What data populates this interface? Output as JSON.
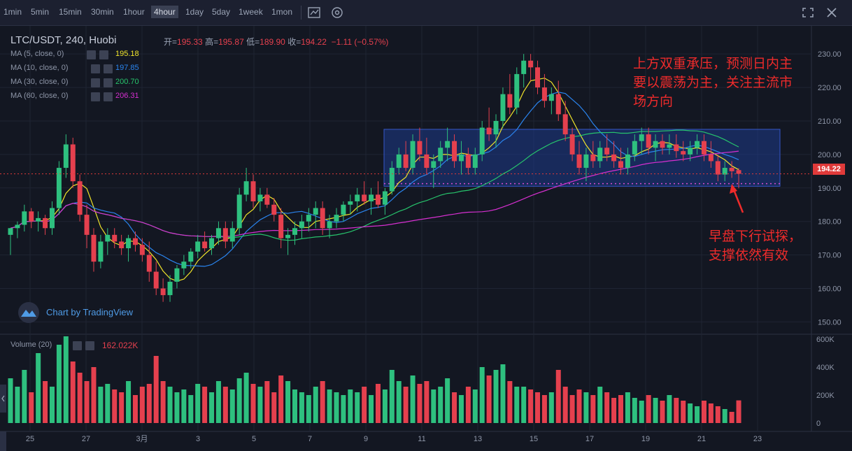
{
  "toolbar": {
    "timeframes": [
      "1min",
      "5min",
      "15min",
      "30min",
      "1hour",
      "4hour",
      "1day",
      "5day",
      "1week",
      "1mon"
    ],
    "active": "4hour",
    "icons": [
      "indicator-icon",
      "settings-icon",
      "fullscreen-icon",
      "close-icon"
    ]
  },
  "legend": {
    "title": "LTC/USDT, 240, Huobi",
    "open_label": "开=",
    "open": "195.33",
    "high_label": "高=",
    "high": "195.87",
    "low_label": "低=",
    "low": "189.90",
    "close_label": "收=",
    "close": "194.22",
    "change": "−1.11 (−0.57%)",
    "ma": [
      {
        "label": "MA (5, close, 0)",
        "value": "195.18",
        "color": "#f0e42a"
      },
      {
        "label": "MA (10, close, 0)",
        "value": "197.85",
        "color": "#2a84ee"
      },
      {
        "label": "MA (30, close, 0)",
        "value": "200.70",
        "color": "#27c46c"
      },
      {
        "label": "MA (60, close, 0)",
        "value": "206.31",
        "color": "#d62fd0"
      }
    ],
    "volume_label": "Volume (20)",
    "volume_value": "162.022K"
  },
  "annotations": {
    "top": [
      "上方双重承压，预测日内主",
      "要以震荡为主，关注主流市",
      "场方向"
    ],
    "bottom": [
      "早盘下行试探，",
      "支撑依然有效"
    ]
  },
  "watermark": "Chart by TradingView",
  "price_tag": "194.22",
  "colors": {
    "up": "#2ec07f",
    "down": "#e5404e",
    "ma5": "#f0e42a",
    "ma10": "#2a84ee",
    "ma30": "#27c46c",
    "ma60": "#d62fd0",
    "box": "#1e3a8a"
  },
  "chart_data": {
    "type": "candlestick",
    "symbol": "LTC/USDT",
    "interval": "240",
    "exchange": "Huobi",
    "yaxis": {
      "ticks": [
        150,
        160,
        170,
        180,
        190,
        200,
        210,
        220,
        230
      ],
      "ylim": [
        148,
        234
      ]
    },
    "volume_axis": {
      "ticks": [
        "0",
        "200K",
        "400K",
        "600K"
      ],
      "ylim": [
        0,
        600
      ]
    },
    "xaxis_labels": [
      "25",
      "27",
      "3月",
      "3",
      "5",
      "7",
      "9",
      "11",
      "13",
      "15",
      "17",
      "19",
      "21",
      "23"
    ],
    "candles": [
      [
        176,
        178,
        170,
        178
      ],
      [
        178,
        180,
        175,
        179
      ],
      [
        179,
        185,
        177,
        183
      ],
      [
        183,
        184,
        178,
        180
      ],
      [
        180,
        183,
        177,
        181
      ],
      [
        181,
        182,
        176,
        178
      ],
      [
        178,
        186,
        176,
        184
      ],
      [
        184,
        198,
        182,
        196
      ],
      [
        196,
        206,
        193,
        203
      ],
      [
        203,
        205,
        190,
        192
      ],
      [
        192,
        194,
        180,
        182
      ],
      [
        182,
        185,
        172,
        176
      ],
      [
        176,
        178,
        165,
        168
      ],
      [
        168,
        176,
        166,
        174
      ],
      [
        174,
        178,
        170,
        176
      ],
      [
        176,
        178,
        172,
        174
      ],
      [
        174,
        176,
        170,
        172
      ],
      [
        172,
        176,
        168,
        175
      ],
      [
        175,
        177,
        171,
        173
      ],
      [
        173,
        175,
        168,
        170
      ],
      [
        170,
        174,
        162,
        165
      ],
      [
        165,
        168,
        158,
        160
      ],
      [
        160,
        163,
        156,
        158
      ],
      [
        158,
        164,
        156,
        162
      ],
      [
        162,
        167,
        160,
        166
      ],
      [
        166,
        170,
        164,
        168
      ],
      [
        168,
        172,
        166,
        171
      ],
      [
        171,
        176,
        169,
        174
      ],
      [
        174,
        177,
        171,
        172
      ],
      [
        172,
        176,
        170,
        175
      ],
      [
        175,
        180,
        173,
        178
      ],
      [
        178,
        180,
        172,
        174
      ],
      [
        174,
        180,
        172,
        178
      ],
      [
        178,
        190,
        176,
        188
      ],
      [
        188,
        196,
        186,
        192
      ],
      [
        192,
        194,
        184,
        186
      ],
      [
        186,
        190,
        183,
        188
      ],
      [
        188,
        190,
        184,
        185
      ],
      [
        185,
        187,
        180,
        182
      ],
      [
        182,
        184,
        172,
        175
      ],
      [
        175,
        178,
        170,
        176
      ],
      [
        176,
        180,
        173,
        178
      ],
      [
        178,
        182,
        175,
        180
      ],
      [
        180,
        184,
        177,
        182
      ],
      [
        182,
        186,
        178,
        184
      ],
      [
        184,
        186,
        176,
        178
      ],
      [
        178,
        182,
        175,
        180
      ],
      [
        180,
        184,
        178,
        182
      ],
      [
        182,
        186,
        180,
        185
      ],
      [
        185,
        188,
        182,
        186
      ],
      [
        186,
        190,
        183,
        188
      ],
      [
        188,
        192,
        185,
        186
      ],
      [
        186,
        190,
        182,
        188
      ],
      [
        188,
        192,
        184,
        185
      ],
      [
        185,
        190,
        182,
        189
      ],
      [
        189,
        198,
        188,
        196
      ],
      [
        196,
        202,
        194,
        200
      ],
      [
        200,
        204,
        195,
        196
      ],
      [
        196,
        206,
        194,
        204
      ],
      [
        204,
        208,
        198,
        200
      ],
      [
        200,
        205,
        194,
        196
      ],
      [
        196,
        200,
        190,
        198
      ],
      [
        198,
        204,
        196,
        202
      ],
      [
        202,
        208,
        198,
        204
      ],
      [
        204,
        206,
        196,
        198
      ],
      [
        198,
        204,
        194,
        200
      ],
      [
        200,
        202,
        194,
        196
      ],
      [
        196,
        202,
        194,
        200
      ],
      [
        200,
        210,
        198,
        208
      ],
      [
        208,
        214,
        204,
        206
      ],
      [
        206,
        212,
        202,
        210
      ],
      [
        210,
        220,
        208,
        218
      ],
      [
        218,
        224,
        212,
        214
      ],
      [
        214,
        226,
        212,
        224
      ],
      [
        224,
        230,
        220,
        228
      ],
      [
        228,
        230,
        222,
        226
      ],
      [
        226,
        228,
        218,
        220
      ],
      [
        220,
        224,
        214,
        216
      ],
      [
        216,
        220,
        212,
        218
      ],
      [
        218,
        222,
        210,
        212
      ],
      [
        212,
        216,
        204,
        206
      ],
      [
        206,
        208,
        198,
        200
      ],
      [
        200,
        204,
        194,
        196
      ],
      [
        196,
        202,
        192,
        200
      ],
      [
        200,
        204,
        196,
        198
      ],
      [
        198,
        204,
        196,
        202
      ],
      [
        202,
        206,
        198,
        200
      ],
      [
        200,
        204,
        196,
        198
      ],
      [
        198,
        202,
        194,
        196
      ],
      [
        196,
        202,
        194,
        200
      ],
      [
        200,
        206,
        198,
        204
      ],
      [
        204,
        208,
        200,
        206
      ],
      [
        206,
        208,
        200,
        202
      ],
      [
        202,
        206,
        198,
        204
      ],
      [
        204,
        206,
        200,
        202
      ],
      [
        202,
        206,
        200,
        203
      ],
      [
        203,
        206,
        199,
        201
      ],
      [
        201,
        204,
        198,
        200
      ],
      [
        200,
        204,
        198,
        202
      ],
      [
        202,
        206,
        200,
        204
      ],
      [
        204,
        206,
        198,
        200
      ],
      [
        200,
        204,
        196,
        198
      ],
      [
        198,
        200,
        192,
        194
      ],
      [
        194,
        198,
        192,
        196
      ],
      [
        196,
        198,
        193,
        195
      ],
      [
        195.33,
        195.87,
        189.9,
        194.22
      ]
    ],
    "volumes": [
      320,
      260,
      380,
      220,
      500,
      300,
      260,
      560,
      620,
      440,
      360,
      300,
      400,
      260,
      280,
      240,
      220,
      300,
      200,
      260,
      280,
      480,
      300,
      260,
      220,
      240,
      200,
      280,
      260,
      220,
      300,
      260,
      240,
      320,
      360,
      280,
      260,
      300,
      220,
      340,
      300,
      240,
      220,
      200,
      260,
      300,
      240,
      220,
      200,
      240,
      220,
      260,
      200,
      280,
      240,
      380,
      300,
      260,
      340,
      280,
      300,
      240,
      260,
      320,
      220,
      200,
      260,
      240,
      400,
      340,
      380,
      420,
      300,
      260,
      260,
      240,
      220,
      200,
      220,
      380,
      260,
      200,
      240,
      220,
      200,
      260,
      220,
      180,
      200,
      220,
      180,
      160,
      200,
      180,
      160,
      200,
      180,
      160,
      140,
      120,
      160,
      140,
      120,
      100,
      80,
      162
    ],
    "support_range": [
      190.5,
      207.5
    ]
  }
}
